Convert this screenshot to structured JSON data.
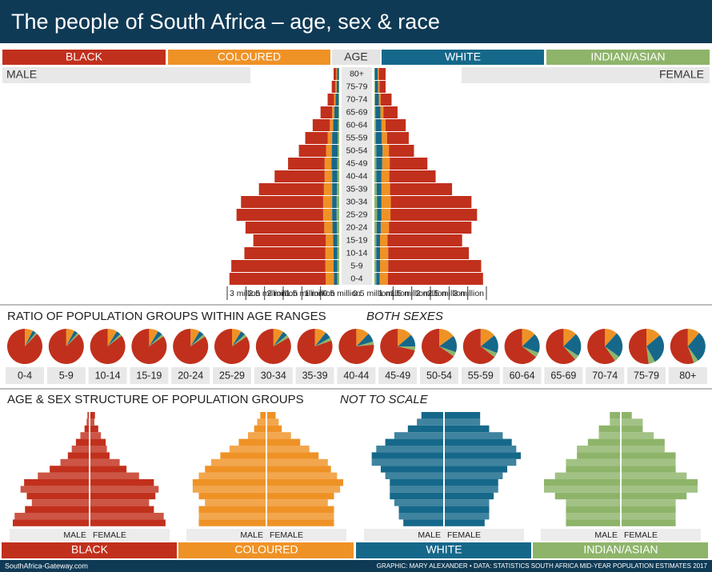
{
  "title": "The people of South Africa – age, sex & race",
  "source": "SouthAfrica-Gateway.com",
  "credit": "GRAPHIC: MARY ALEXANDER • DATA: STATISTICS SOUTH AFRICA MID-YEAR POPULATION ESTIMATES 2017",
  "chart_data": [
    {
      "type": "pyramid",
      "age_label": "AGE",
      "male_label": "MALE",
      "female_label": "FEMALE",
      "categories": [
        "0-4",
        "5-9",
        "10-14",
        "15-19",
        "20-24",
        "25-29",
        "30-34",
        "35-39",
        "40-44",
        "45-49",
        "50-54",
        "55-59",
        "60-64",
        "65-69",
        "70-74",
        "75-79",
        "80+"
      ],
      "xlim": [
        0,
        3
      ],
      "xticks": [
        {
          "value": 0.5,
          "label": "0.5 million"
        },
        {
          "value": 1,
          "label": "1 million"
        },
        {
          "value": 1.5,
          "label": "1.5 million"
        },
        {
          "value": 2,
          "label": "2 million"
        },
        {
          "value": 2.5,
          "label": "2.5 million"
        },
        {
          "value": 3,
          "label": "3 million"
        }
      ],
      "series": [
        {
          "name": "BLACK",
          "color": "#c1301c",
          "male": [
            2.58,
            2.52,
            2.17,
            1.94,
            2.11,
            2.32,
            2.2,
            1.74,
            1.34,
            0.98,
            0.73,
            0.6,
            0.46,
            0.31,
            0.17,
            0.1,
            0.07
          ],
          "female": [
            2.55,
            2.49,
            2.16,
            2.0,
            2.21,
            2.32,
            2.16,
            1.66,
            1.24,
            1.01,
            0.67,
            0.58,
            0.54,
            0.38,
            0.29,
            0.16,
            0.18
          ]
        },
        {
          "name": "COLOURED",
          "color": "#ef9226",
          "male": [
            0.22,
            0.22,
            0.22,
            0.2,
            0.22,
            0.24,
            0.24,
            0.22,
            0.2,
            0.18,
            0.15,
            0.12,
            0.09,
            0.06,
            0.04,
            0.03,
            0.02
          ],
          "female": [
            0.22,
            0.22,
            0.22,
            0.2,
            0.22,
            0.24,
            0.25,
            0.23,
            0.21,
            0.2,
            0.17,
            0.14,
            0.11,
            0.08,
            0.05,
            0.04,
            0.03
          ]
        },
        {
          "name": "WHITE",
          "color": "#15688a",
          "male": [
            0.09,
            0.1,
            0.1,
            0.11,
            0.12,
            0.12,
            0.12,
            0.13,
            0.14,
            0.16,
            0.16,
            0.15,
            0.13,
            0.11,
            0.08,
            0.06,
            0.05
          ],
          "female": [
            0.09,
            0.1,
            0.1,
            0.1,
            0.11,
            0.12,
            0.12,
            0.13,
            0.14,
            0.16,
            0.17,
            0.16,
            0.15,
            0.13,
            0.1,
            0.08,
            0.08
          ]
        },
        {
          "name": "INDIAN/ASIAN",
          "color": "#8eb46a",
          "male": [
            0.05,
            0.05,
            0.05,
            0.05,
            0.06,
            0.07,
            0.07,
            0.06,
            0.05,
            0.05,
            0.04,
            0.04,
            0.03,
            0.02,
            0.02,
            0.01,
            0.01
          ],
          "female": [
            0.05,
            0.05,
            0.05,
            0.05,
            0.06,
            0.07,
            0.07,
            0.06,
            0.05,
            0.05,
            0.05,
            0.04,
            0.04,
            0.03,
            0.02,
            0.02,
            0.01
          ]
        }
      ]
    },
    {
      "type": "pie",
      "title": "RATIO OF POPULATION GROUPS WITHIN AGE RANGES",
      "subtitle": "BOTH SEXES"
    },
    {
      "type": "small-pyramids",
      "title": "AGE & SEX STRUCTURE OF POPULATION GROUPS",
      "subtitle": "NOT TO SCALE"
    }
  ]
}
